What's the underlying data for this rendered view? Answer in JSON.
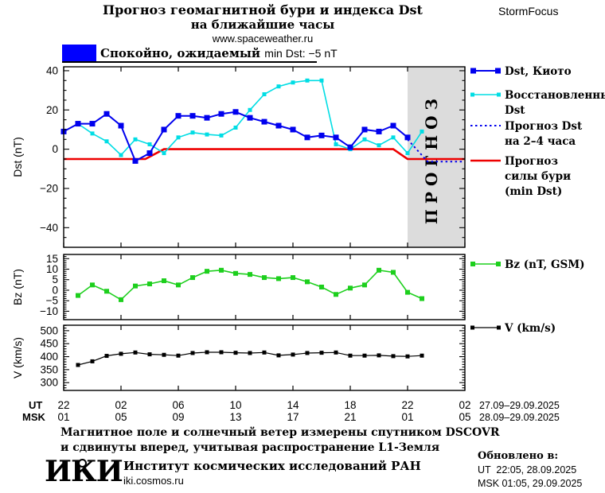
{
  "header": {
    "title_line1": "Прогноз геомагнитной бури и индекса Dst",
    "title_line2": "на ближайшие часы",
    "site_url": "www.spaceweather.ru",
    "brand": "StormFocus",
    "status": {
      "swatch_color": "#0000ff",
      "text_ru": "Спокойно, ожидаемый",
      "text_en": "min Dst: −5 nT"
    }
  },
  "xaxis": {
    "tick_hours": [
      0,
      4,
      8,
      12,
      16,
      20,
      24,
      28
    ],
    "ut_row_label": "UT",
    "msk_row_label": "MSK",
    "ut_labels": [
      "22",
      "02",
      "06",
      "10",
      "14",
      "18",
      "22",
      "02"
    ],
    "msk_labels": [
      "01",
      "05",
      "09",
      "13",
      "17",
      "21",
      "01",
      "05"
    ],
    "ut_dates": "27.09–29.09.2025",
    "msk_dates": "28.09–29.09.2025"
  },
  "chart_data": [
    {
      "type": "line",
      "panel": "Dst",
      "ylabel": "Dst (nT)",
      "ylim": [
        -50,
        42
      ],
      "yticks": [
        40,
        20,
        0,
        -20,
        -40
      ],
      "yminor": 5,
      "xlim": [
        0,
        28
      ],
      "x_unit": "hours from 22:00 UT 27.09.2025, ticks every 4 h",
      "forecast_region": {
        "from_hour": 24,
        "to_hour": 28,
        "label": "ПРОГНОЗ",
        "fill": "#dcdcdc",
        "label_color": "#c4c4c4"
      },
      "series": [
        {
          "name": "Прогноз силы бури (min Dst)",
          "legend_lines": [
            "Прогноз",
            "силы бури",
            "(min Dst)"
          ],
          "color": "#ee0000",
          "style": "solid",
          "marker": false,
          "x": [
            0,
            5.7,
            7,
            23,
            24,
            28
          ],
          "values": [
            -5,
            -5,
            0,
            0,
            -5,
            -5
          ]
        },
        {
          "name": "Восстановленный Dst",
          "legend_lines": [
            "Восстановленный",
            "Dst"
          ],
          "color": "#00dde4",
          "style": "solid",
          "marker": true,
          "x": [
            1,
            2,
            3,
            4,
            5,
            6,
            7,
            8,
            9,
            10,
            11,
            12,
            13,
            14,
            15,
            16,
            17,
            18,
            19,
            20,
            21,
            22,
            23,
            24,
            25
          ],
          "values": [
            13,
            8,
            4,
            -3,
            5,
            2.5,
            -2,
            6,
            8.5,
            7.5,
            7,
            11,
            20,
            28,
            32,
            34,
            35,
            35,
            2.5,
            0,
            5,
            2,
            6,
            -2,
            9
          ]
        },
        {
          "name": "Dst, Киото",
          "legend_lines": [
            "Dst, Киото"
          ],
          "color": "#0000ee",
          "style": "solid",
          "marker": true,
          "x": [
            0,
            1,
            2,
            3,
            4,
            5,
            6,
            7,
            8,
            9,
            10,
            11,
            12,
            13,
            14,
            15,
            16,
            17,
            18,
            19,
            20,
            21,
            22,
            23,
            24
          ],
          "values": [
            9,
            13,
            13,
            18,
            12,
            -6,
            -2,
            10,
            17,
            17,
            16,
            18,
            19,
            16,
            14,
            12,
            10,
            6,
            7,
            6,
            1,
            10,
            9,
            12,
            6
          ]
        },
        {
          "name": "Прогноз Dst на 2–4 часа",
          "legend_lines": [
            "Прогноз Dst",
            "на 2–4 часа"
          ],
          "color": "#0000ee",
          "style": "dotted",
          "marker": false,
          "x": [
            24,
            25.4,
            28
          ],
          "values": [
            5,
            -6.3,
            -6.3
          ]
        }
      ]
    },
    {
      "type": "line",
      "panel": "Bz",
      "ylabel": "Bz (nT)",
      "ylim": [
        -14,
        17
      ],
      "yticks": [
        15,
        10,
        5,
        0,
        -5,
        -10
      ],
      "yminor": 1,
      "xlim": [
        0,
        28
      ],
      "series": [
        {
          "name": "Bz (nT, GSM)",
          "legend_lines": [
            "Bz (nT, GSM)"
          ],
          "color": "#1dcf1d",
          "style": "solid",
          "marker": true,
          "x": [
            1,
            2,
            3,
            4,
            5,
            6,
            7,
            8,
            9,
            10,
            11,
            12,
            13,
            14,
            15,
            16,
            17,
            18,
            19,
            20,
            21,
            22,
            23,
            24,
            25
          ],
          "values": [
            -2.5,
            2.5,
            -0.5,
            -4.5,
            2,
            3,
            4.5,
            2.5,
            6,
            9,
            9.5,
            8,
            7.5,
            6,
            5.5,
            6,
            4,
            1.5,
            -2,
            1,
            2.5,
            9.5,
            8.5,
            -1,
            -4
          ]
        }
      ]
    },
    {
      "type": "line",
      "panel": "V",
      "ylabel": "V (km/s)",
      "ylim": [
        270,
        521
      ],
      "yticks": [
        500,
        450,
        400,
        350,
        300
      ],
      "yminor": 10,
      "xlim": [
        0,
        28
      ],
      "series": [
        {
          "name": "V (km/s)",
          "legend_lines": [
            "V (km/s)"
          ],
          "color": "#000000",
          "style": "solid",
          "marker": true,
          "x": [
            1,
            2,
            3,
            4,
            5,
            6,
            7,
            8,
            9,
            10,
            11,
            12,
            13,
            14,
            15,
            16,
            17,
            18,
            19,
            20,
            21,
            22,
            23,
            24,
            25
          ],
          "values": [
            368,
            382,
            403,
            411,
            416,
            409,
            407,
            404,
            414,
            417,
            417,
            415,
            414,
            416,
            405,
            408,
            414,
            415,
            416,
            404,
            404,
            405,
            402,
            401,
            404
          ]
        }
      ]
    }
  ],
  "footer": {
    "note_line1": "Магнитное поле и солнечный ветер измерены спутником DSCOVR",
    "note_line2": "и сдвинуты вперед, учитывая распространение L1-Земля",
    "logo_text": "ИКИ",
    "institute": "Институт космических исследований РАН",
    "institute_url": "iki.cosmos.ru",
    "updated_label": "Обновлено в:",
    "updated_ut": "UT  22:05, 28.09.2025",
    "updated_msk": "MSK 01:05, 29.09.2025"
  }
}
